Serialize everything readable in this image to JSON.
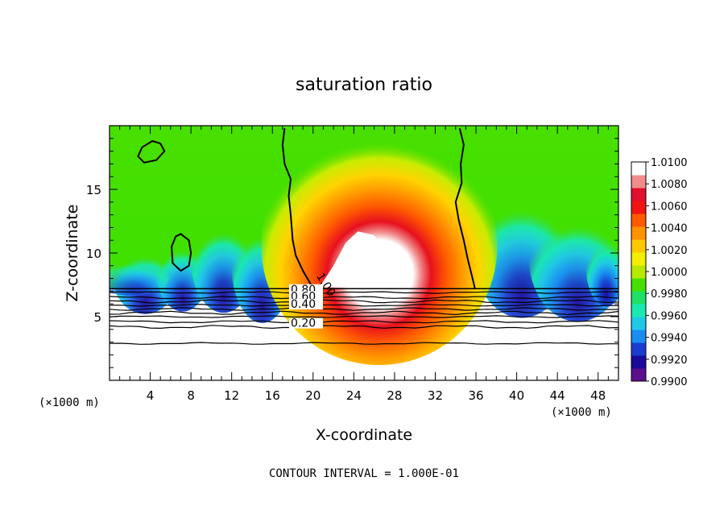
{
  "chart_data": {
    "type": "heatmap",
    "title": "saturation ratio",
    "xlabel": "X-coordinate",
    "ylabel": "Z-coordinate",
    "x_unit_label": "(×1000 m)",
    "y_unit_label": "(×1000 m)",
    "footer": "CONTOUR INTERVAL = 1.000E-01",
    "xlim": [
      0,
      50
    ],
    "ylim": [
      0,
      20
    ],
    "x_ticks": [
      4,
      8,
      12,
      16,
      20,
      24,
      28,
      32,
      36,
      40,
      44,
      48
    ],
    "y_ticks": [
      5,
      10,
      15
    ],
    "colorbar": {
      "min": 0.99,
      "max": 1.01,
      "labels": [
        "1.0100",
        "1.0080",
        "1.0060",
        "1.0040",
        "1.0020",
        "1.0000",
        "0.9980",
        "0.9960",
        "0.9940",
        "0.9920",
        "0.9900"
      ],
      "colors": [
        "#5a0f8c",
        "#1a0a9a",
        "#1a3ccf",
        "#1a8df0",
        "#20c8e8",
        "#19e8b0",
        "#1ee064",
        "#46e000",
        "#b8e800",
        "#f2f000",
        "#ffc800",
        "#ff9200",
        "#ff5a00",
        "#f01414",
        "#e0102e",
        "#f08c8c",
        "#ffffff"
      ]
    },
    "contour_labels": [
      "1.00",
      "0.80",
      "0.60",
      "0.40",
      "0.20"
    ],
    "contour_levels_below_cloud_base": [
      0.2,
      0.4,
      0.6,
      0.8
    ],
    "cloud_base_z": 7.2,
    "contour_1_00": {
      "loop_upper_left": [
        [
          4.2,
          18.8
        ],
        [
          5.0,
          18.6
        ],
        [
          5.4,
          18.0
        ],
        [
          4.6,
          17.3
        ],
        [
          3.4,
          17.1
        ],
        [
          2.8,
          17.6
        ],
        [
          3.2,
          18.3
        ]
      ],
      "loop_left": [
        [
          7.0,
          11.5
        ],
        [
          7.8,
          11.0
        ],
        [
          8.0,
          10.0
        ],
        [
          7.8,
          9.0
        ],
        [
          7.0,
          8.6
        ],
        [
          6.2,
          9.2
        ],
        [
          6.1,
          10.5
        ],
        [
          6.5,
          11.3
        ]
      ],
      "left_boundary": [
        [
          17.2,
          19.8
        ],
        [
          17.0,
          18.5
        ],
        [
          17.2,
          17.0
        ],
        [
          17.8,
          15.8
        ],
        [
          17.6,
          14.5
        ],
        [
          17.8,
          13.0
        ],
        [
          18.0,
          11.0
        ],
        [
          18.3,
          9.8
        ],
        [
          19.0,
          8.6
        ],
        [
          19.8,
          7.5
        ]
      ],
      "right_boundary": [
        [
          34.4,
          19.8
        ],
        [
          34.8,
          18.5
        ],
        [
          34.5,
          17.0
        ],
        [
          34.6,
          15.5
        ],
        [
          34.0,
          14.0
        ],
        [
          34.3,
          12.6
        ],
        [
          34.8,
          11.0
        ],
        [
          35.2,
          9.5
        ],
        [
          35.6,
          8.2
        ],
        [
          35.9,
          7.2
        ]
      ]
    }
  }
}
